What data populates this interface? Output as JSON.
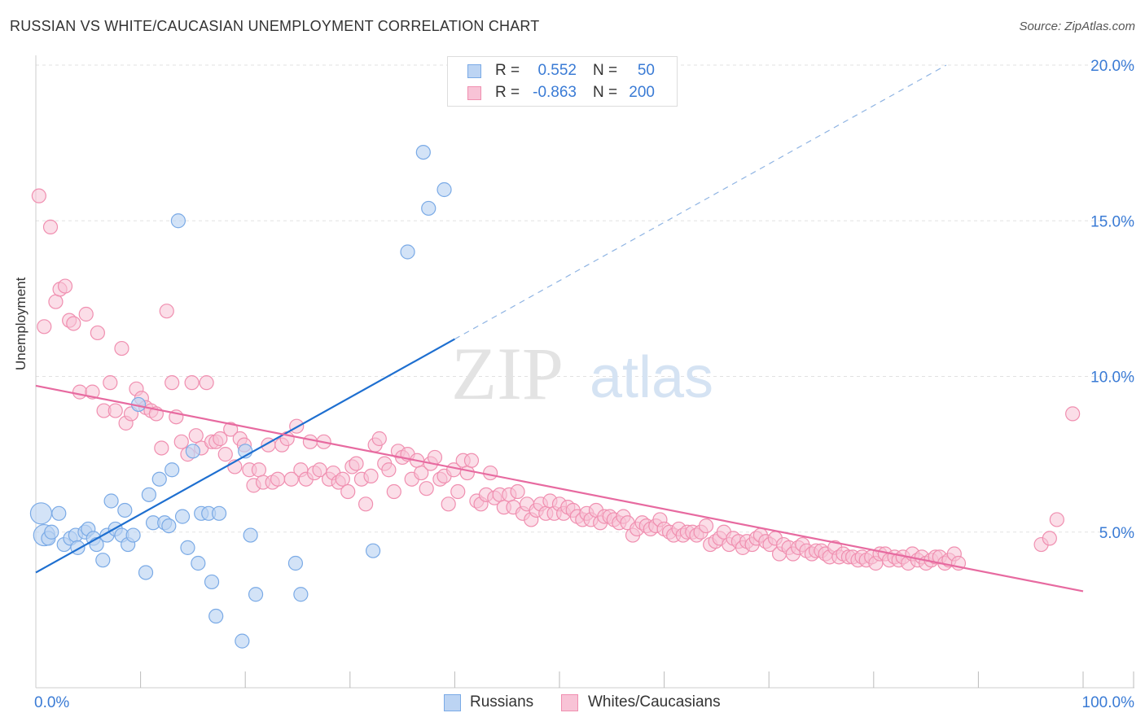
{
  "title": "RUSSIAN VS WHITE/CAUCASIAN UNEMPLOYMENT CORRELATION CHART",
  "source": "Source: ZipAtlas.com",
  "watermark": {
    "zip": "ZIP",
    "atlas": "atlas"
  },
  "legend": {
    "r_label": "R =",
    "n_label": "N =",
    "rows": [
      {
        "r": "0.552",
        "n": "50",
        "color": "#7aaae6"
      },
      {
        "r": "-0.863",
        "n": "200",
        "color": "#f08fb0"
      }
    ]
  },
  "bottom_legend": {
    "russians": "Russians",
    "whites": "Whites/Caucasians"
  },
  "colors": {
    "blue": "#1e6fd0",
    "blue_fill": "#bcd4f3",
    "pink": "#e76aa0",
    "pink_fill": "#f8c3d6",
    "value_text": "#3a7bd5"
  },
  "chart_data": {
    "type": "scatter",
    "title": "RUSSIAN VS WHITE/CAUCASIAN UNEMPLOYMENT CORRELATION CHART",
    "xlabel": "",
    "ylabel": "Unemployment",
    "xlim": [
      0,
      100
    ],
    "ylim": [
      0,
      20
    ],
    "x_tick_labels": [
      "0.0%",
      "100.0%"
    ],
    "y_ticks": [
      5,
      10,
      15,
      20
    ],
    "y_tick_labels": [
      "5.0%",
      "10.0%",
      "15.0%",
      "20.0%"
    ],
    "grid": "horizontal dashed",
    "legend_position": "top-center",
    "series": [
      {
        "name": "Russians",
        "color": "#1e6fd0",
        "trend": {
          "x": [
            0,
            40
          ],
          "y": [
            3.7,
            11.2
          ],
          "extension_to": [
            100,
            20
          ]
        },
        "points": [
          [
            0.5,
            5.6
          ],
          [
            0.8,
            4.9
          ],
          [
            1.2,
            4.8
          ],
          [
            1.5,
            5.0
          ],
          [
            2.2,
            5.6
          ],
          [
            2.7,
            4.6
          ],
          [
            3.3,
            4.8
          ],
          [
            3.8,
            4.9
          ],
          [
            4.0,
            4.5
          ],
          [
            4.7,
            5.0
          ],
          [
            5.0,
            5.1
          ],
          [
            5.5,
            4.8
          ],
          [
            5.8,
            4.6
          ],
          [
            6.4,
            4.1
          ],
          [
            6.8,
            4.9
          ],
          [
            7.2,
            6.0
          ],
          [
            7.6,
            5.1
          ],
          [
            8.2,
            4.9
          ],
          [
            8.5,
            5.7
          ],
          [
            8.8,
            4.6
          ],
          [
            9.3,
            4.9
          ],
          [
            9.8,
            9.1
          ],
          [
            10.5,
            3.7
          ],
          [
            10.8,
            6.2
          ],
          [
            11.2,
            5.3
          ],
          [
            11.8,
            6.7
          ],
          [
            12.3,
            5.3
          ],
          [
            12.7,
            5.2
          ],
          [
            13.0,
            7.0
          ],
          [
            13.6,
            15.0
          ],
          [
            14.0,
            5.5
          ],
          [
            14.5,
            4.5
          ],
          [
            15.0,
            7.6
          ],
          [
            15.5,
            4.0
          ],
          [
            15.8,
            5.6
          ],
          [
            16.5,
            5.6
          ],
          [
            16.8,
            3.4
          ],
          [
            17.2,
            2.3
          ],
          [
            17.5,
            5.6
          ],
          [
            19.7,
            1.5
          ],
          [
            20.0,
            7.6
          ],
          [
            20.5,
            4.9
          ],
          [
            21.0,
            3.0
          ],
          [
            24.8,
            4.0
          ],
          [
            25.3,
            3.0
          ],
          [
            32.2,
            4.4
          ],
          [
            35.5,
            14.0
          ],
          [
            37.0,
            17.2
          ],
          [
            37.5,
            15.4
          ],
          [
            39.0,
            16.0
          ]
        ]
      },
      {
        "name": "Whites/Caucasians",
        "color": "#e76aa0",
        "trend": {
          "x": [
            0,
            100
          ],
          "y": [
            9.7,
            3.1
          ]
        },
        "points": [
          [
            0.3,
            15.8
          ],
          [
            0.8,
            11.6
          ],
          [
            1.4,
            14.8
          ],
          [
            1.9,
            12.4
          ],
          [
            2.3,
            12.8
          ],
          [
            2.8,
            12.9
          ],
          [
            3.2,
            11.8
          ],
          [
            3.6,
            11.7
          ],
          [
            4.2,
            9.5
          ],
          [
            4.8,
            12.0
          ],
          [
            5.4,
            9.5
          ],
          [
            5.9,
            11.4
          ],
          [
            6.5,
            8.9
          ],
          [
            7.1,
            9.8
          ],
          [
            7.6,
            8.9
          ],
          [
            8.2,
            10.9
          ],
          [
            8.6,
            8.5
          ],
          [
            9.1,
            8.8
          ],
          [
            9.6,
            9.6
          ],
          [
            10.1,
            9.3
          ],
          [
            10.5,
            9.0
          ],
          [
            11.0,
            8.9
          ],
          [
            11.5,
            8.8
          ],
          [
            12.0,
            7.7
          ],
          [
            12.5,
            12.1
          ],
          [
            13.0,
            9.8
          ],
          [
            13.4,
            8.7
          ],
          [
            13.9,
            7.9
          ],
          [
            14.5,
            7.5
          ],
          [
            14.9,
            9.8
          ],
          [
            15.3,
            8.1
          ],
          [
            15.8,
            7.7
          ],
          [
            16.3,
            9.8
          ],
          [
            16.8,
            7.9
          ],
          [
            17.2,
            7.9
          ],
          [
            17.6,
            8.0
          ],
          [
            18.1,
            7.5
          ],
          [
            18.6,
            8.3
          ],
          [
            19.0,
            7.1
          ],
          [
            19.5,
            8.0
          ],
          [
            19.9,
            7.8
          ],
          [
            20.4,
            7.0
          ],
          [
            20.8,
            6.5
          ],
          [
            21.3,
            7.0
          ],
          [
            21.7,
            6.6
          ],
          [
            22.2,
            7.8
          ],
          [
            22.6,
            6.6
          ],
          [
            23.1,
            6.7
          ],
          [
            23.5,
            7.8
          ],
          [
            24.0,
            8.0
          ],
          [
            24.4,
            6.7
          ],
          [
            24.9,
            8.4
          ],
          [
            25.3,
            7.0
          ],
          [
            25.8,
            6.7
          ],
          [
            26.2,
            7.9
          ],
          [
            26.6,
            6.9
          ],
          [
            27.1,
            7.0
          ],
          [
            27.5,
            7.9
          ],
          [
            28.0,
            6.7
          ],
          [
            28.4,
            6.9
          ],
          [
            28.9,
            6.6
          ],
          [
            29.3,
            6.7
          ],
          [
            29.8,
            6.3
          ],
          [
            30.2,
            7.1
          ],
          [
            30.6,
            7.2
          ],
          [
            31.1,
            6.7
          ],
          [
            31.5,
            5.9
          ],
          [
            32.0,
            6.8
          ],
          [
            32.4,
            7.8
          ],
          [
            32.8,
            8.0
          ],
          [
            33.3,
            7.2
          ],
          [
            33.7,
            7.0
          ],
          [
            34.2,
            6.3
          ],
          [
            34.6,
            7.6
          ],
          [
            35.0,
            7.4
          ],
          [
            35.5,
            7.5
          ],
          [
            35.9,
            6.7
          ],
          [
            36.4,
            7.3
          ],
          [
            36.8,
            6.9
          ],
          [
            37.3,
            6.4
          ],
          [
            37.7,
            7.2
          ],
          [
            38.1,
            7.4
          ],
          [
            38.6,
            6.7
          ],
          [
            39.0,
            6.8
          ],
          [
            39.4,
            5.9
          ],
          [
            39.9,
            7.0
          ],
          [
            40.3,
            6.3
          ],
          [
            40.8,
            7.3
          ],
          [
            41.2,
            6.9
          ],
          [
            41.6,
            7.3
          ],
          [
            42.1,
            6.0
          ],
          [
            42.5,
            5.9
          ],
          [
            43.0,
            6.2
          ],
          [
            43.4,
            6.9
          ],
          [
            43.8,
            6.1
          ],
          [
            44.3,
            6.2
          ],
          [
            44.7,
            5.8
          ],
          [
            45.2,
            6.2
          ],
          [
            45.6,
            5.8
          ],
          [
            46.0,
            6.3
          ],
          [
            46.5,
            5.6
          ],
          [
            46.9,
            5.9
          ],
          [
            47.3,
            5.4
          ],
          [
            47.8,
            5.7
          ],
          [
            48.2,
            5.9
          ],
          [
            48.7,
            5.6
          ],
          [
            49.1,
            6.0
          ],
          [
            49.5,
            5.6
          ],
          [
            50.0,
            5.9
          ],
          [
            50.4,
            5.6
          ],
          [
            50.8,
            5.8
          ],
          [
            51.3,
            5.7
          ],
          [
            51.7,
            5.5
          ],
          [
            52.2,
            5.4
          ],
          [
            52.6,
            5.6
          ],
          [
            53.0,
            5.4
          ],
          [
            53.5,
            5.7
          ],
          [
            53.9,
            5.3
          ],
          [
            54.3,
            5.5
          ],
          [
            54.8,
            5.5
          ],
          [
            55.2,
            5.4
          ],
          [
            55.7,
            5.3
          ],
          [
            56.1,
            5.5
          ],
          [
            56.5,
            5.3
          ],
          [
            57.0,
            4.9
          ],
          [
            57.4,
            5.1
          ],
          [
            57.9,
            5.3
          ],
          [
            58.3,
            5.2
          ],
          [
            58.7,
            5.1
          ],
          [
            59.2,
            5.2
          ],
          [
            59.6,
            5.4
          ],
          [
            60.0,
            5.1
          ],
          [
            60.5,
            5.0
          ],
          [
            60.9,
            4.9
          ],
          [
            61.4,
            5.1
          ],
          [
            61.8,
            4.9
          ],
          [
            62.2,
            5.0
          ],
          [
            62.7,
            5.0
          ],
          [
            63.1,
            4.9
          ],
          [
            63.5,
            5.0
          ],
          [
            64.0,
            5.2
          ],
          [
            64.4,
            4.6
          ],
          [
            64.9,
            4.7
          ],
          [
            65.3,
            4.8
          ],
          [
            65.7,
            5.0
          ],
          [
            66.2,
            4.6
          ],
          [
            66.6,
            4.8
          ],
          [
            67.1,
            4.7
          ],
          [
            67.5,
            4.5
          ],
          [
            67.9,
            4.7
          ],
          [
            68.4,
            4.6
          ],
          [
            68.8,
            4.8
          ],
          [
            69.2,
            4.9
          ],
          [
            69.7,
            4.7
          ],
          [
            70.1,
            4.6
          ],
          [
            70.6,
            4.8
          ],
          [
            71.0,
            4.3
          ],
          [
            71.4,
            4.6
          ],
          [
            71.9,
            4.5
          ],
          [
            72.3,
            4.3
          ],
          [
            72.8,
            4.5
          ],
          [
            73.2,
            4.6
          ],
          [
            73.6,
            4.4
          ],
          [
            74.1,
            4.3
          ],
          [
            74.5,
            4.4
          ],
          [
            75.0,
            4.4
          ],
          [
            75.4,
            4.3
          ],
          [
            75.8,
            4.2
          ],
          [
            76.3,
            4.5
          ],
          [
            76.7,
            4.2
          ],
          [
            77.1,
            4.3
          ],
          [
            77.6,
            4.2
          ],
          [
            78.0,
            4.2
          ],
          [
            78.5,
            4.1
          ],
          [
            78.9,
            4.2
          ],
          [
            79.3,
            4.1
          ],
          [
            79.8,
            4.2
          ],
          [
            80.2,
            4.0
          ],
          [
            80.6,
            4.3
          ],
          [
            81.1,
            4.3
          ],
          [
            81.5,
            4.1
          ],
          [
            82.0,
            4.2
          ],
          [
            82.4,
            4.1
          ],
          [
            82.8,
            4.2
          ],
          [
            83.3,
            4.0
          ],
          [
            83.7,
            4.3
          ],
          [
            84.2,
            4.1
          ],
          [
            84.6,
            4.2
          ],
          [
            85.0,
            4.0
          ],
          [
            85.5,
            4.1
          ],
          [
            85.9,
            4.2
          ],
          [
            86.3,
            4.2
          ],
          [
            86.8,
            4.0
          ],
          [
            87.2,
            4.1
          ],
          [
            87.7,
            4.3
          ],
          [
            88.1,
            4.0
          ],
          [
            96.0,
            4.6
          ],
          [
            96.8,
            4.8
          ],
          [
            97.5,
            5.4
          ],
          [
            99.0,
            8.8
          ]
        ]
      }
    ]
  }
}
